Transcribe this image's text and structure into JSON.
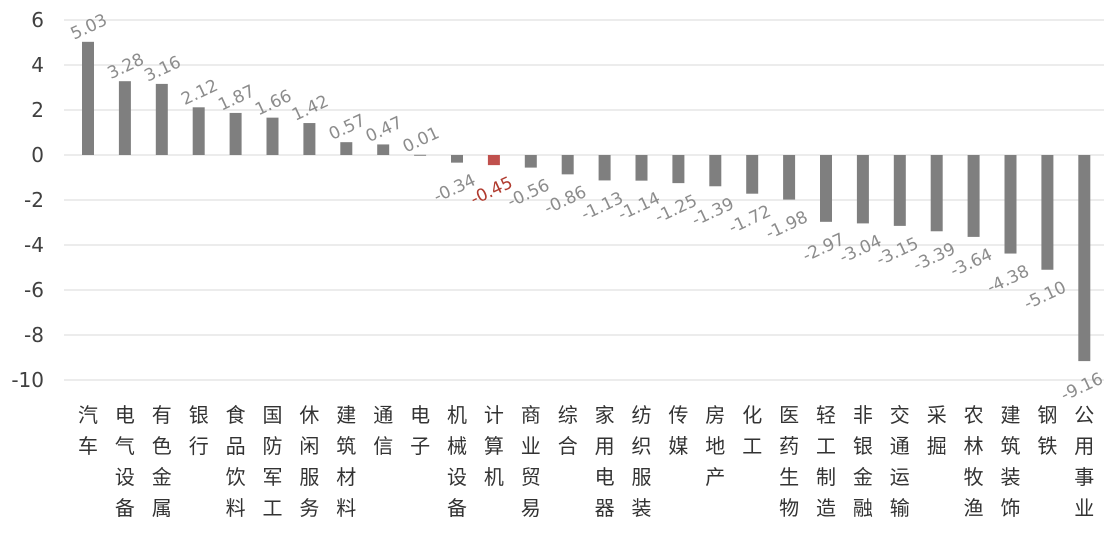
{
  "chart_data": {
    "type": "bar",
    "title": "",
    "xlabel": "",
    "ylabel": "",
    "ylim": [
      -10,
      6
    ],
    "yticks": [
      6,
      4,
      2,
      0,
      -2,
      -4,
      -6,
      -8,
      -10
    ],
    "grid": true,
    "legend": "none",
    "categories": [
      "汽车",
      "电气设备",
      "有色金属",
      "银行",
      "食品饮料",
      "国防军工",
      "休闲服务",
      "建筑材料",
      "通信",
      "电子",
      "机械设备",
      "计算机",
      "商业贸易",
      "综合",
      "家用电器",
      "纺织服装",
      "传媒",
      "房地产",
      "化工",
      "医药生物",
      "轻工制造",
      "非银金融",
      "交通运输",
      "采掘",
      "农林牧渔",
      "建筑装饰",
      "钢铁",
      "公用事业"
    ],
    "values": [
      5.03,
      3.28,
      3.16,
      2.12,
      1.87,
      1.66,
      1.42,
      0.57,
      0.47,
      0.01,
      -0.34,
      -0.45,
      -0.56,
      -0.86,
      -1.13,
      -1.14,
      -1.25,
      -1.39,
      -1.72,
      -1.98,
      -2.97,
      -3.04,
      -3.15,
      -3.39,
      -3.64,
      -4.38,
      -5.1,
      -9.16
    ],
    "value_labels": [
      "5.03",
      "3.28",
      "3.16",
      "2.12",
      "1.87",
      "1.66",
      "1.42",
      "0.57",
      "0.47",
      "0.01",
      "-0.34",
      "-0.45",
      "-0.56",
      "-0.86",
      "-1.13",
      "-1.14",
      "-1.25",
      "-1.39",
      "-1.72",
      "-1.98",
      "-2.97",
      "-3.04",
      "-3.15",
      "-3.39",
      "-3.64",
      "-4.38",
      "-5.10",
      "-9.16"
    ],
    "highlight_index": 11,
    "colors": {
      "bar": "#7f7f7f",
      "highlight": "#c0504d",
      "grid": "#d9d9d9",
      "label": "#8c8c8c",
      "highlight_label": "#b03a2e"
    }
  }
}
